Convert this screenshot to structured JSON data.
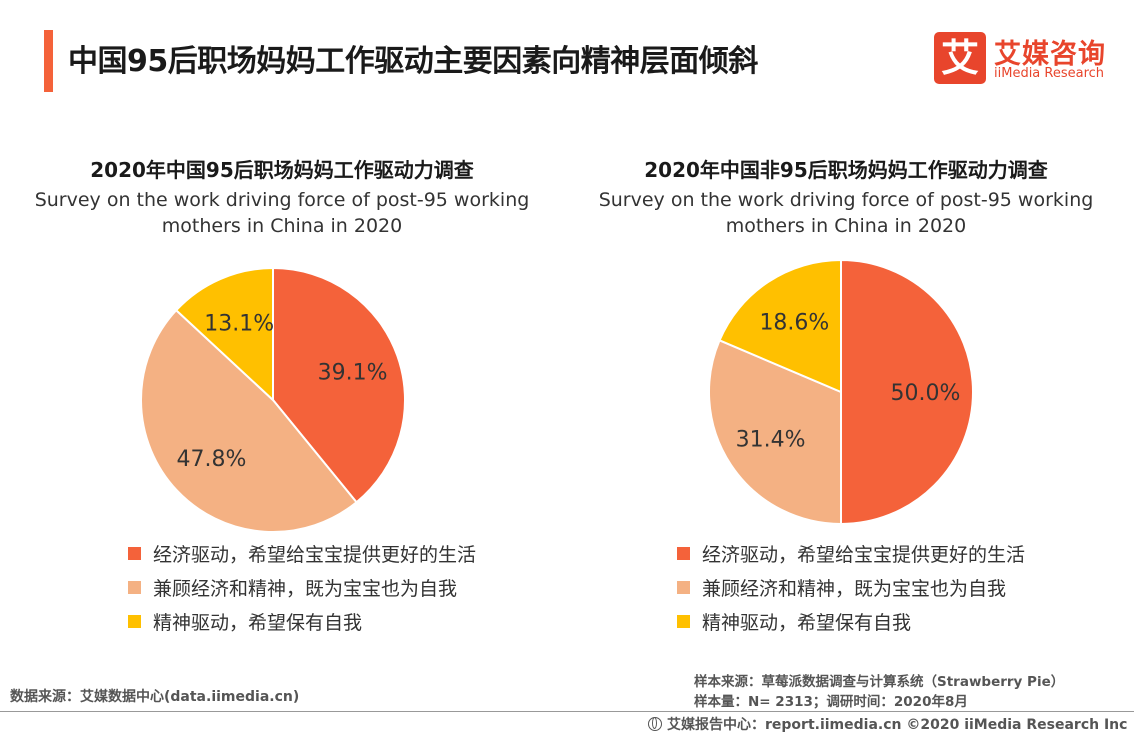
{
  "header": {
    "title": "中国95后职场妈妈工作驱动主要因素向精神层面倾斜",
    "logo_mark": "艾",
    "logo_cn": "艾媒咨询",
    "logo_en": "iiMedia Research"
  },
  "colors": {
    "accent": "#f4623a",
    "series": [
      "#f4623a",
      "#f4b183",
      "#ffc000"
    ]
  },
  "legend": [
    "经济驱动，希望给宝宝提供更好的生活",
    "兼顾经济和精神，既为宝宝也为自我",
    "精神驱动，希望保有自我"
  ],
  "chart_data": [
    {
      "type": "pie",
      "title": "2020年中国95后职场妈妈工作驱动力调查",
      "subtitle": "Survey on the work driving force of post-95 working mothers in China in 2020",
      "categories": [
        "经济驱动，希望给宝宝提供更好的生活",
        "兼顾经济和精神，既为宝宝也为自我",
        "精神驱动，希望保有自我"
      ],
      "values": [
        39.1,
        47.8,
        13.1
      ],
      "labels": [
        "39.1%",
        "47.8%",
        "13.1%"
      ]
    },
    {
      "type": "pie",
      "title": "2020年中国非95后职场妈妈工作驱动力调查",
      "subtitle": "Survey on the work driving force of post-95 working mothers in China in 2020",
      "categories": [
        "经济驱动，希望给宝宝提供更好的生活",
        "兼顾经济和精神，既为宝宝也为自我",
        "精神驱动，希望保有自我"
      ],
      "values": [
        50.0,
        31.4,
        18.6
      ],
      "labels": [
        "50.0%",
        "31.4%",
        "18.6%"
      ]
    }
  ],
  "footer": {
    "source_left": "数据来源：艾媒数据中心(data.iimedia.cn)",
    "sample_source": "样本来源：草莓派数据调查与计算系统（Strawberry  Pie）",
    "sample_size": "样本量：N= 2313；调研时间：2020年8月",
    "copyright": "艾媒报告中心：report.iimedia.cn   ©2020  iiMedia Research  Inc"
  }
}
